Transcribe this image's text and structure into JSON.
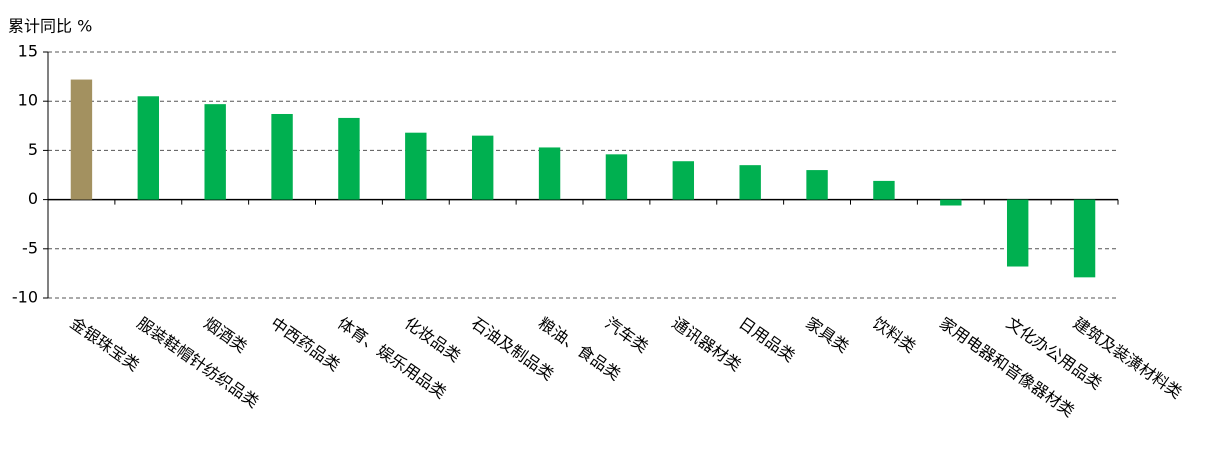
{
  "chart_data": {
    "type": "bar",
    "title": "累计同比 %",
    "categories": [
      "金银珠宝类",
      "服装鞋帽针纺织品类",
      "烟酒类",
      "中西药品类",
      "体育、娱乐用品类",
      "化妆品类",
      "石油及制品类",
      "粮油、食品类",
      "汽车类",
      "通讯器材类",
      "日用品类",
      "家具类",
      "饮料类",
      "家用电器和音像器材类",
      "文化办公用品类",
      "建筑及装潢材料类"
    ],
    "values": [
      12.2,
      10.5,
      9.7,
      8.7,
      8.3,
      6.8,
      6.5,
      5.3,
      4.6,
      3.9,
      3.5,
      3.0,
      1.9,
      -0.6,
      -6.8,
      -7.9
    ],
    "colors": [
      "#a39160",
      "#00b050",
      "#00b050",
      "#00b050",
      "#00b050",
      "#00b050",
      "#00b050",
      "#00b050",
      "#00b050",
      "#00b050",
      "#00b050",
      "#00b050",
      "#00b050",
      "#00b050",
      "#00b050",
      "#00b050"
    ],
    "ylim": [
      -10,
      15
    ],
    "yticks": [
      -10,
      -5,
      0,
      5,
      10,
      15
    ],
    "grid": true
  }
}
